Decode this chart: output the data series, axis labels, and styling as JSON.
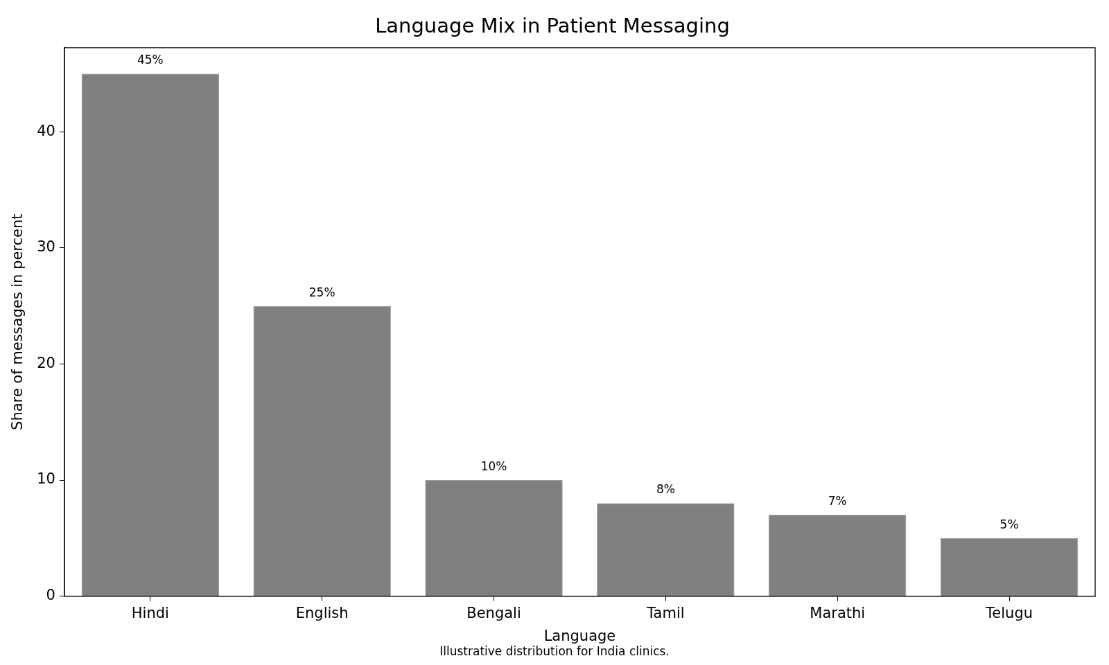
{
  "chart_data": {
    "type": "bar",
    "title": "Language Mix in Patient Messaging",
    "xlabel": "Language",
    "ylabel": "Share of messages in percent",
    "categories": [
      "Hindi",
      "English",
      "Bengali",
      "Tamil",
      "Marathi",
      "Telugu"
    ],
    "values": [
      45,
      25,
      10,
      8,
      7,
      5
    ],
    "value_labels": [
      "45%",
      "25%",
      "10%",
      "8%",
      "7%",
      "5%"
    ],
    "color": "#808080",
    "ylim": [
      0,
      47.25
    ],
    "yticks": [
      0,
      10,
      20,
      30,
      40
    ],
    "annotations": [
      "Illustrative distribution for India clinics."
    ]
  }
}
